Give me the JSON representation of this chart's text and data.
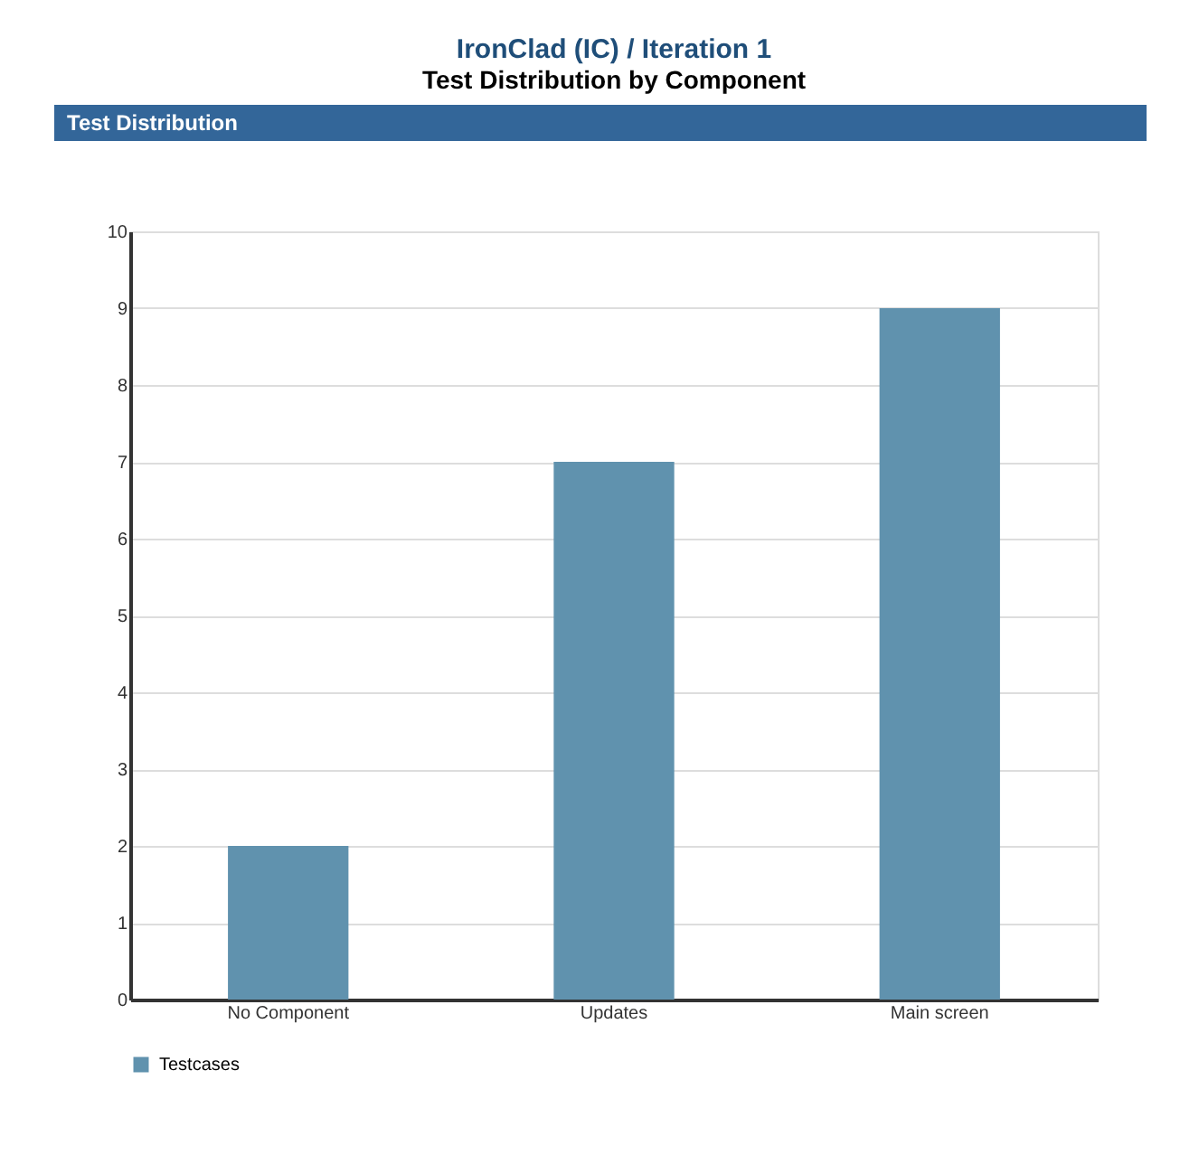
{
  "chart_data": {
    "type": "bar",
    "title": "IronClad (IC) / Iteration 1",
    "subtitle": "Test Distribution by Component",
    "annotations": [
      "Test Distribution"
    ],
    "categories": [
      "No Component",
      "Updates",
      "Main screen"
    ],
    "series": [
      {
        "name": "Testcases",
        "color": "#6092ae",
        "values": [
          2,
          7,
          9
        ]
      }
    ],
    "ylim": [
      0,
      10
    ],
    "yticks": [
      0,
      1,
      2,
      3,
      4,
      5,
      6,
      7,
      8,
      9,
      10
    ],
    "grid": "y",
    "legend": "bottom"
  }
}
